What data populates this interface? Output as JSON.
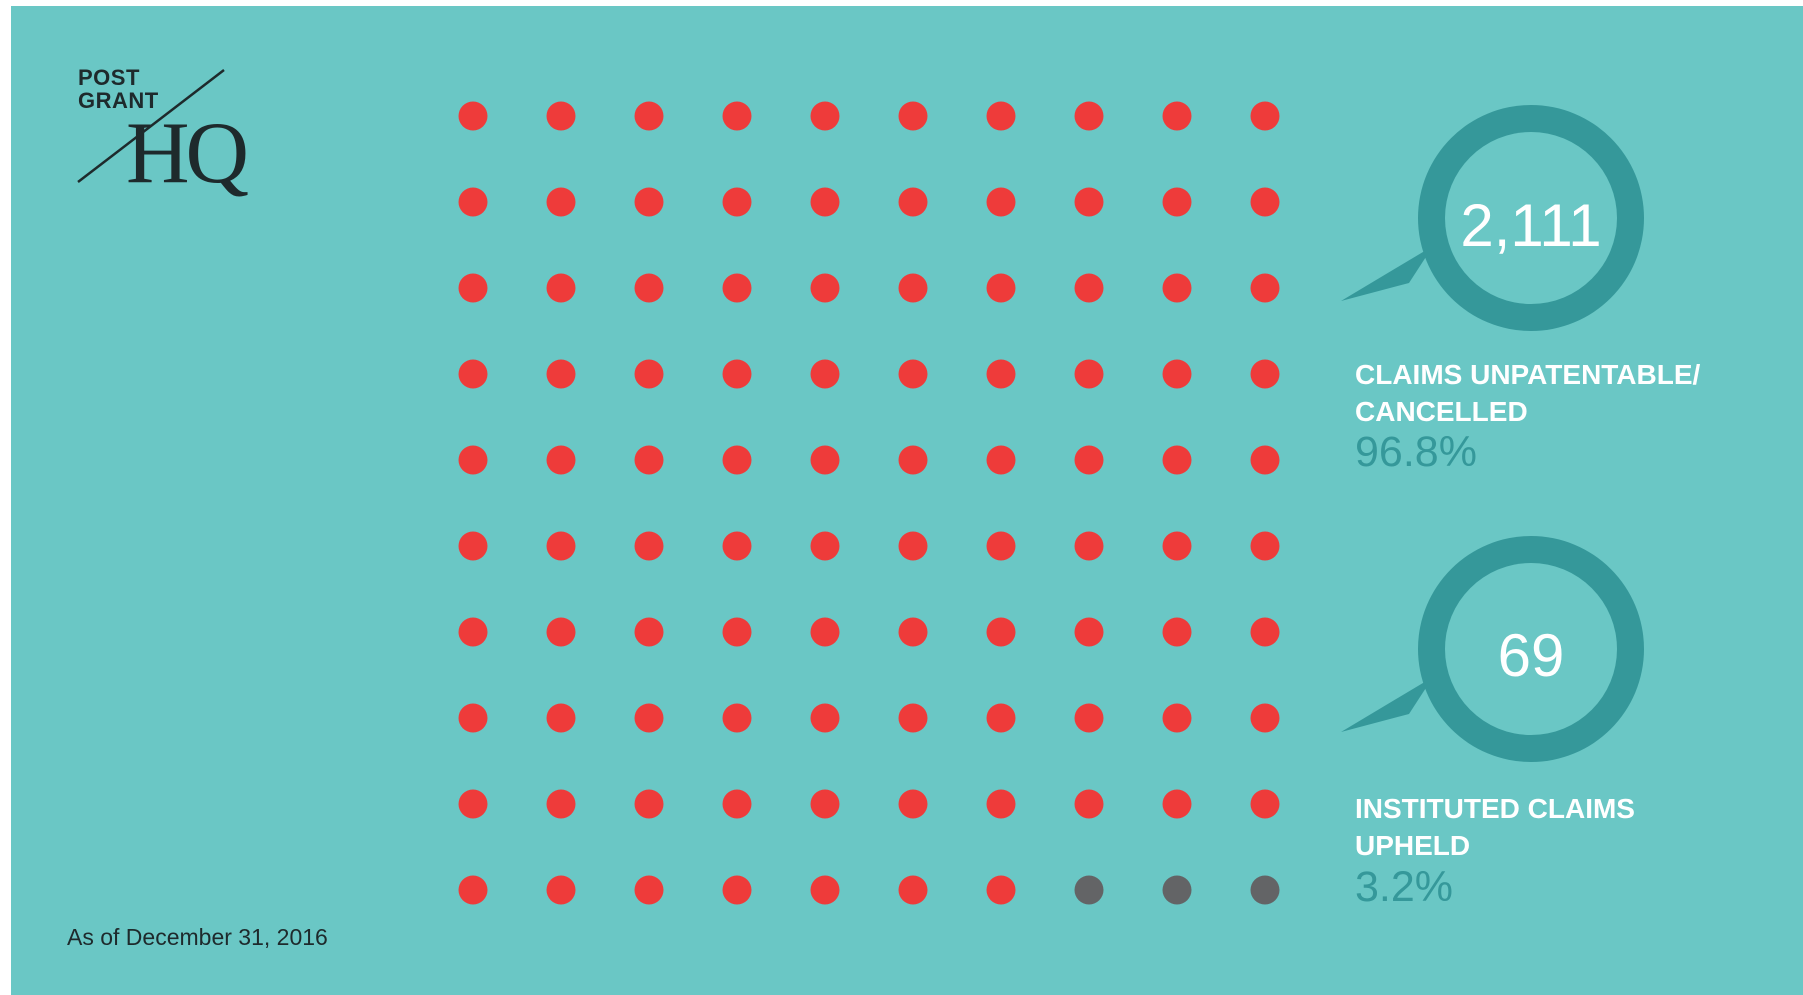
{
  "logo": {
    "line1": "POST",
    "line2": "GRANT",
    "mark": "HQ"
  },
  "as_of": "As of December 31, 2016",
  "colors": {
    "background": "#6ac7c5",
    "accent": "#35989a",
    "upheld_dot": "#636466",
    "cancelled_dot": "#ee3b3a",
    "text_dark": "#1e2a2c",
    "text_light": "#ffffff"
  },
  "stats": [
    {
      "count": "2,111",
      "label_line1": "CLAIMS UNPATENTABLE/",
      "label_line2": "CANCELLED",
      "percent": "96.8%"
    },
    {
      "count": "69",
      "label_line1": "INSTITUTED CLAIMS",
      "label_line2": "UPHELD",
      "percent": "3.2%"
    }
  ],
  "chart_data": {
    "type": "waffle",
    "rows": 10,
    "cols": 10,
    "total_dots": 100,
    "series": [
      {
        "name": "CLAIMS UNPATENTABLE/ CANCELLED",
        "dots": 97,
        "color": "#ee3b3a"
      },
      {
        "name": "INSTITUTED CLAIMS UPHELD",
        "dots": 3,
        "color": "#636466"
      }
    ]
  }
}
